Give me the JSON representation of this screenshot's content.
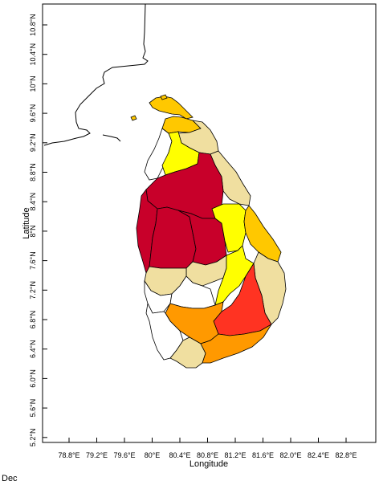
{
  "map": {
    "x_axis_label": "Longitude",
    "y_axis_label": "Latitude",
    "x_ticks": [
      "78.8°E",
      "79.2°E",
      "79.6°E",
      "80°E",
      "80.4°E",
      "80.8°E",
      "81.2°E",
      "81.6°E",
      "82.0°E",
      "82.4°E",
      "82.8°E"
    ],
    "y_ticks": [
      "5.2°N",
      "5.6°N",
      "6.0°N",
      "6.4°N",
      "6.8°N",
      "7.2°N",
      "7.6°N",
      "8°N",
      "8.4°N",
      "8.8°N",
      "9.2°N",
      "9.6°N",
      "10°N",
      "10.4°N",
      "10.8°N"
    ],
    "month": "Dec",
    "colors": {
      "none": "#ffffff",
      "very_low": "#f0dfa0",
      "low": "#ffff00",
      "medium": "#ffc800",
      "high": "#ff9900",
      "very_high": "#ff3322",
      "extreme": "#c8002a"
    }
  }
}
